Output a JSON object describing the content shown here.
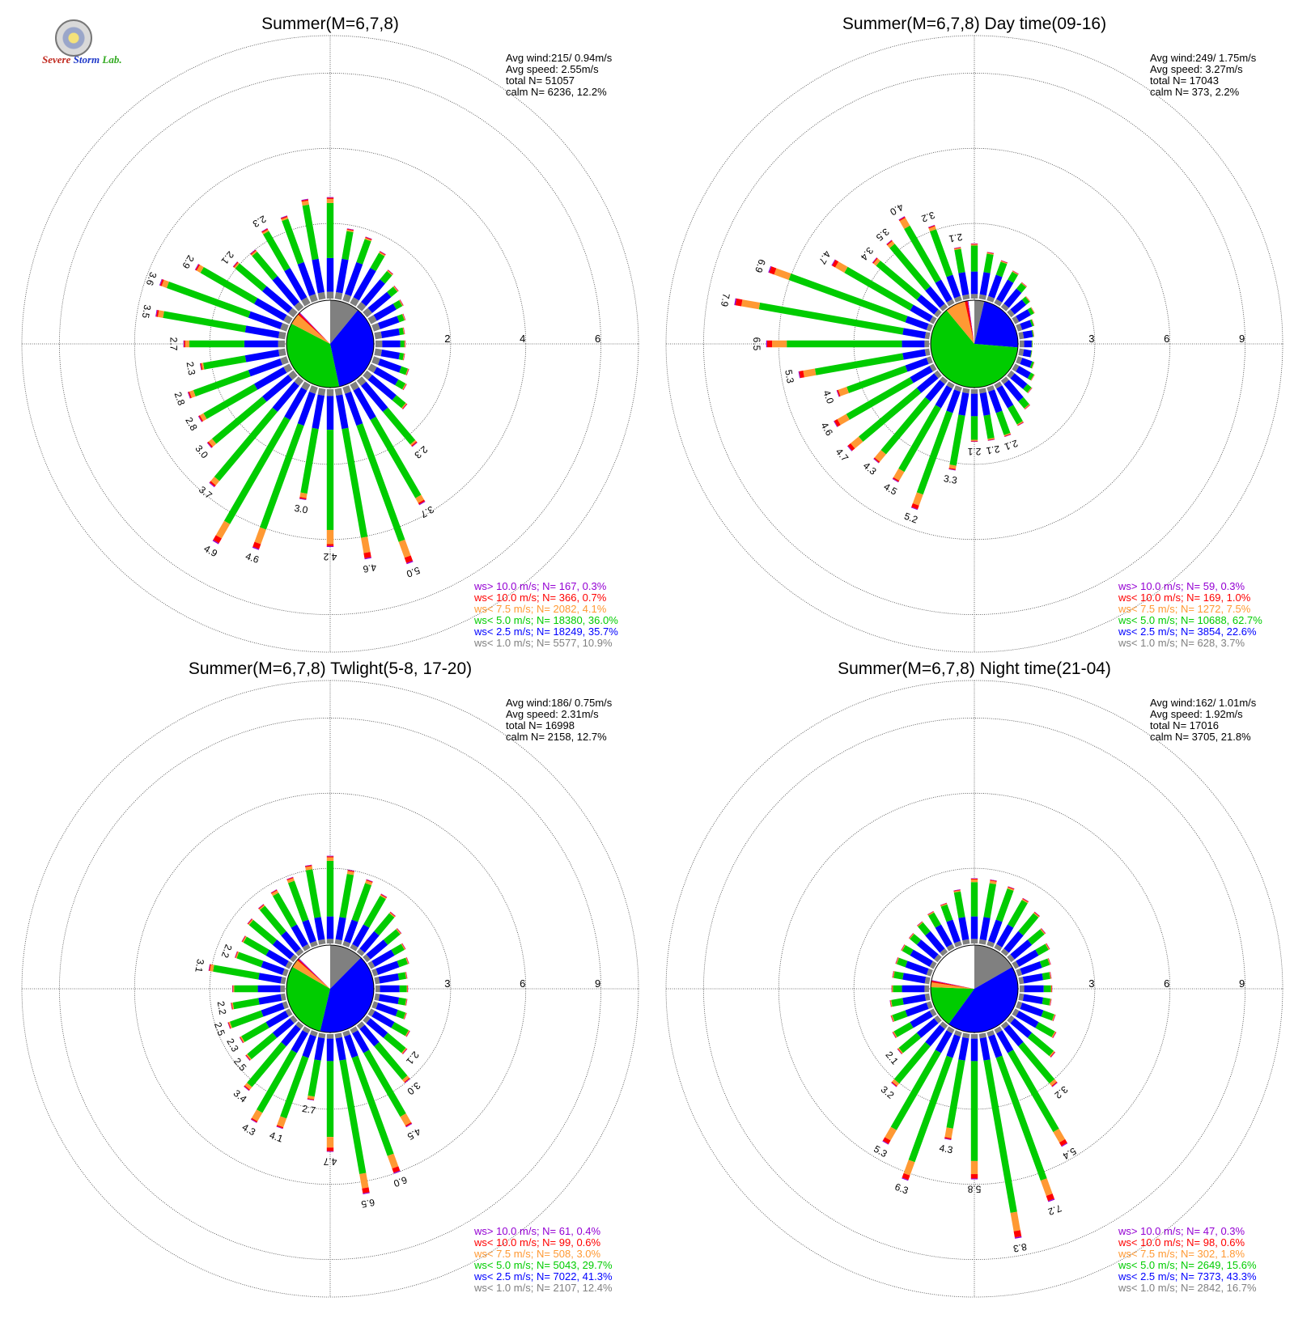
{
  "logo": {
    "line1": "Severe",
    "line2": "Storm",
    "line3": "Lab."
  },
  "colors": {
    "gt10": "#9400d3",
    "lt10": "#ff0000",
    "lt75": "#ff9933",
    "lt5": "#00cc00",
    "lt25": "#0000ff",
    "lt1": "#808080",
    "calm": "#ffffff"
  },
  "chart_data": [
    {
      "type": "wind-rose",
      "title": "Summer(M=6,7,8)",
      "ring_labels": [
        "2",
        "4",
        "6"
      ],
      "rmax": 7,
      "stats": [
        "Avg wind:215/ 0.94m/s",
        "Avg speed: 2.55m/s",
        "total N=       51057",
        "calm N=   6236,  12.2%"
      ],
      "legend": [
        {
          "label": "ws> 10.0 m/s; N=   167,  0.3%",
          "color": "#9400d3"
        },
        {
          "label": "ws< 10.0 m/s; N=   366,  0.7%",
          "color": "#ff0000"
        },
        {
          "label": "ws<  7.5 m/s; N=  2082,  4.1%",
          "color": "#ff9933"
        },
        {
          "label": "ws<  5.0 m/s; N= 18380, 36.0%",
          "color": "#00cc00"
        },
        {
          "label": "ws<  2.5 m/s; N= 18249, 35.7%",
          "color": "#0000ff"
        },
        {
          "label": "ws<  1.0 m/s; N=  5577, 10.9%",
          "color": "#808080"
        }
      ],
      "pie": [
        5577,
        18249,
        18380,
        2082,
        366,
        167,
        6236
      ],
      "petal_values": [
        2.7,
        1.9,
        1.8,
        1.6,
        1.3,
        1.1,
        1.0,
        0.9,
        0.8,
        0.8,
        0.8,
        1.0,
        1.1,
        1.4,
        2.3,
        3.7,
        5.0,
        4.6,
        4.2,
        3.0,
        4.6,
        4.9,
        3.7,
        3.0,
        2.8,
        2.8,
        2.3,
        2.7,
        3.5,
        3.6,
        2.9,
        2.1,
        2.0,
        2.3,
        2.4,
        2.7
      ],
      "petal_labels": {
        "14": "2.3",
        "15": "3.7",
        "16": "5.0",
        "17": "4.6",
        "18": "4.2",
        "19": "3.0",
        "20": "4.6",
        "21": "4.9",
        "22": "3.7",
        "23": "3.0",
        "24": "2.8",
        "25": "2.8",
        "26": "2.3",
        "27": "2.7",
        "28": "3.5",
        "29": "3.6",
        "30": "2.9",
        "31": "2.1",
        "33": "2.3"
      }
    },
    {
      "type": "wind-rose",
      "title": "Summer(M=6,7,8) Day time(09-16)",
      "ring_labels": [
        "3",
        "6",
        "9"
      ],
      "rmax": 10.5,
      "stats": [
        "Avg wind:249/ 1.75m/s",
        "Avg speed: 3.27m/s",
        "total N=       17043",
        "calm N=    373,   2.2%"
      ],
      "legend": [
        {
          "label": "ws> 10.0 m/s; N=    59,  0.3%",
          "color": "#9400d3"
        },
        {
          "label": "ws< 10.0 m/s; N=   169,  1.0%",
          "color": "#ff0000"
        },
        {
          "label": "ws<  7.5 m/s; N=  1272,  7.5%",
          "color": "#ff9933"
        },
        {
          "label": "ws<  5.0 m/s; N= 10688, 62.7%",
          "color": "#00cc00"
        },
        {
          "label": "ws<  2.5 m/s; N=  3854, 22.6%",
          "color": "#0000ff"
        },
        {
          "label": "ws<  1.0 m/s; N=   628,  3.7%",
          "color": "#808080"
        }
      ],
      "pie": [
        628,
        3854,
        10688,
        1272,
        169,
        59,
        373
      ],
      "petal_values": [
        2.2,
        1.9,
        1.7,
        1.5,
        1.3,
        1.0,
        0.9,
        0.7,
        0.6,
        0.5,
        0.5,
        0.7,
        0.9,
        1.1,
        1.5,
        1.9,
        2.1,
        2.1,
        2.1,
        3.3,
        5.2,
        4.5,
        4.3,
        4.7,
        4.6,
        4.0,
        5.3,
        6.5,
        7.9,
        6.9,
        4.7,
        3.4,
        3.5,
        4.0,
        3.2,
        2.1
      ],
      "petal_labels": {
        "16": "2.1",
        "17": "2.1",
        "18": "2.1",
        "19": "3.3",
        "20": "5.2",
        "21": "4.5",
        "22": "4.3",
        "23": "4.7",
        "24": "4.6",
        "25": "4.0",
        "26": "5.3",
        "27": "6.5",
        "28": "7.9",
        "29": "6.9",
        "30": "4.7",
        "31": "3.4",
        "32": "3.5",
        "33": "4.0",
        "34": "3.2",
        "35": "2.1"
      }
    },
    {
      "type": "wind-rose",
      "title": "Summer(M=6,7,8) Twlight(5-8, 17-20)",
      "ring_labels": [
        "3",
        "6",
        "9"
      ],
      "rmax": 10.5,
      "stats": [
        "Avg wind:186/ 0.75m/s",
        "Avg speed: 2.31m/s",
        "total N=       16998",
        "calm N=   2158,  12.7%"
      ],
      "legend": [
        {
          "label": "ws> 10.0 m/s; N=    61,  0.4%",
          "color": "#9400d3"
        },
        {
          "label": "ws< 10.0 m/s; N=    99,  0.6%",
          "color": "#ff0000"
        },
        {
          "label": "ws<  7.5 m/s; N=   508,  3.0%",
          "color": "#ff9933"
        },
        {
          "label": "ws<  5.0 m/s; N=  5043, 29.7%",
          "color": "#00cc00"
        },
        {
          "label": "ws<  2.5 m/s; N=  7022, 41.3%",
          "color": "#0000ff"
        },
        {
          "label": "ws<  1.0 m/s; N=  2107, 12.4%",
          "color": "#808080"
        }
      ],
      "pie": [
        2107,
        7022,
        5043,
        508,
        99,
        61,
        2158
      ],
      "petal_values": [
        3.5,
        3.0,
        2.8,
        2.5,
        2.1,
        1.8,
        1.6,
        1.5,
        1.3,
        1.3,
        1.3,
        1.4,
        1.8,
        2.1,
        3.0,
        4.5,
        6.0,
        6.5,
        4.7,
        2.7,
        4.1,
        4.3,
        3.4,
        2.5,
        2.3,
        2.5,
        2.2,
        2.1,
        3.1,
        2.2,
        2.2,
        2.4,
        2.5,
        2.7,
        2.9,
        3.2
      ],
      "petal_labels": {
        "13": "2.1",
        "14": "3.0",
        "15": "4.5",
        "16": "6.0",
        "17": "6.5",
        "18": "4.7",
        "19": "2.7",
        "20": "4.1",
        "21": "4.3",
        "22": "3.4",
        "23": "2.5",
        "24": "2.3",
        "25": "2.5",
        "26": "2.2",
        "28": "3.1",
        "29": "2.2"
      }
    },
    {
      "type": "wind-rose",
      "title": "Summer(M=6,7,8) Night time(21-04)",
      "ring_labels": [
        "3",
        "6",
        "9"
      ],
      "rmax": 10.5,
      "stats": [
        "Avg wind:162/ 1.01m/s",
        "Avg speed: 1.92m/s",
        "total N=       17016",
        "calm N=   3705,  21.8%"
      ],
      "legend": [
        {
          "label": "ws> 10.0 m/s; N=    47,  0.3%",
          "color": "#9400d3"
        },
        {
          "label": "ws< 10.0 m/s; N=    98,  0.6%",
          "color": "#ff0000"
        },
        {
          "label": "ws<  7.5 m/s; N=   302,  1.8%",
          "color": "#ff9933"
        },
        {
          "label": "ws<  5.0 m/s; N=  2649, 15.6%",
          "color": "#00cc00"
        },
        {
          "label": "ws<  2.5 m/s; N=  7373, 43.3%",
          "color": "#0000ff"
        },
        {
          "label": "ws<  1.0 m/s; N=  2842, 16.7%",
          "color": "#808080"
        }
      ],
      "pie": [
        2842,
        7373,
        2649,
        302,
        98,
        47,
        3705
      ],
      "petal_values": [
        2.6,
        2.6,
        2.5,
        2.3,
        2.1,
        1.8,
        1.6,
        1.4,
        1.3,
        1.3,
        1.3,
        1.6,
        1.9,
        2.3,
        3.2,
        5.4,
        7.2,
        8.3,
        5.8,
        4.3,
        6.3,
        5.3,
        3.2,
        2.1,
        1.9,
        1.7,
        1.6,
        1.5,
        1.5,
        1.5,
        1.5,
        1.5,
        1.6,
        1.7,
        1.8,
        2.2
      ],
      "petal_labels": {
        "14": "3.2",
        "15": "5.4",
        "16": "7.2",
        "17": "8.3",
        "18": "5.8",
        "19": "4.3",
        "20": "6.3",
        "21": "5.3",
        "22": "3.2",
        "23": "2.1"
      }
    }
  ]
}
